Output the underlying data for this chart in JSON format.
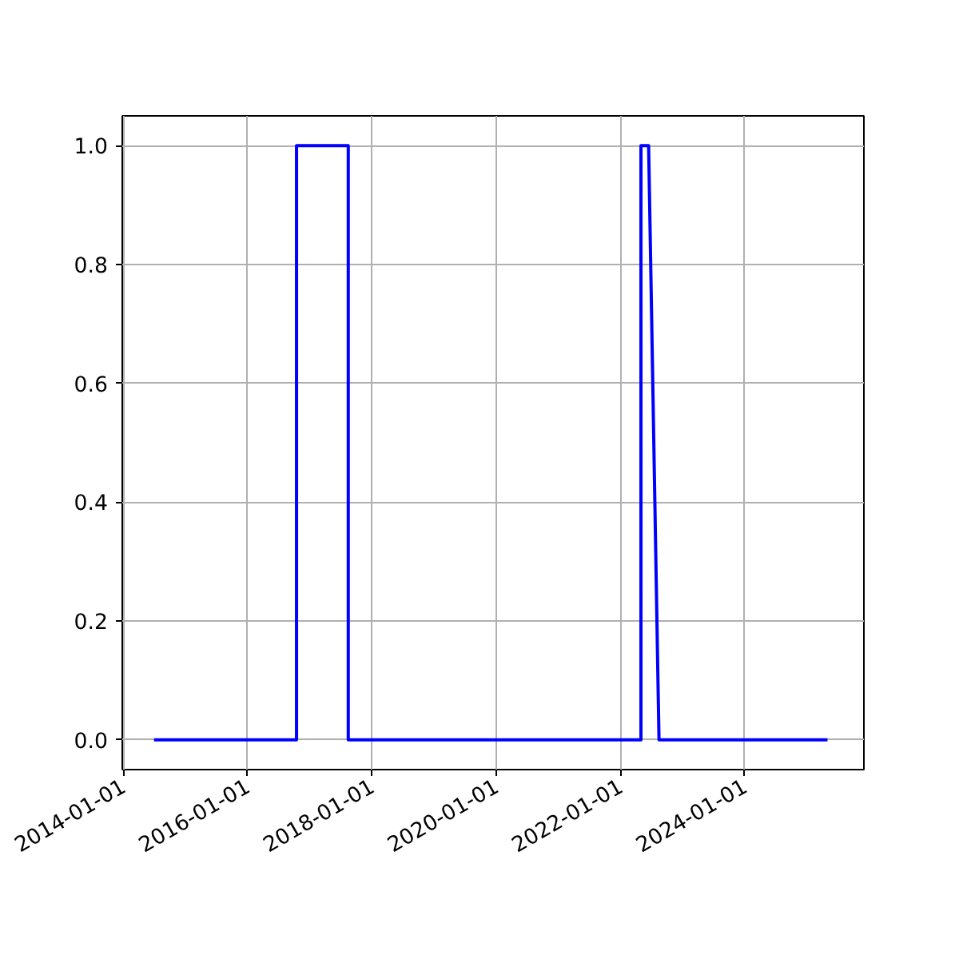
{
  "chart_data": {
    "type": "line",
    "x": [
      "2014-07-01",
      "2016-10-15",
      "2016-10-15",
      "2017-08-15",
      "2017-08-15",
      "2022-05-01",
      "2022-05-01",
      "2022-06-15",
      "2022-08-15",
      "2025-05-01"
    ],
    "series": [
      {
        "color": "#0000ff",
        "values": [
          0,
          0,
          1,
          1,
          0,
          0,
          1,
          1,
          0,
          0
        ]
      }
    ],
    "xlim": [
      "2013-12-26",
      "2025-12-01"
    ],
    "xticks": [
      "2014-01-01",
      "2016-01-01",
      "2018-01-01",
      "2020-01-01",
      "2022-01-01",
      "2024-01-01"
    ],
    "ylim": [
      -0.05,
      1.05
    ],
    "yticks": [
      {
        "value": 0,
        "label": "0.0"
      },
      {
        "value": 0.2,
        "label": "0.2"
      },
      {
        "value": 0.4,
        "label": "0.4"
      },
      {
        "value": 0.6,
        "label": "0.6"
      },
      {
        "value": 0.8,
        "label": "0.8"
      },
      {
        "value": 1,
        "label": "1.0"
      }
    ],
    "grid": true,
    "line_style": "solid"
  }
}
